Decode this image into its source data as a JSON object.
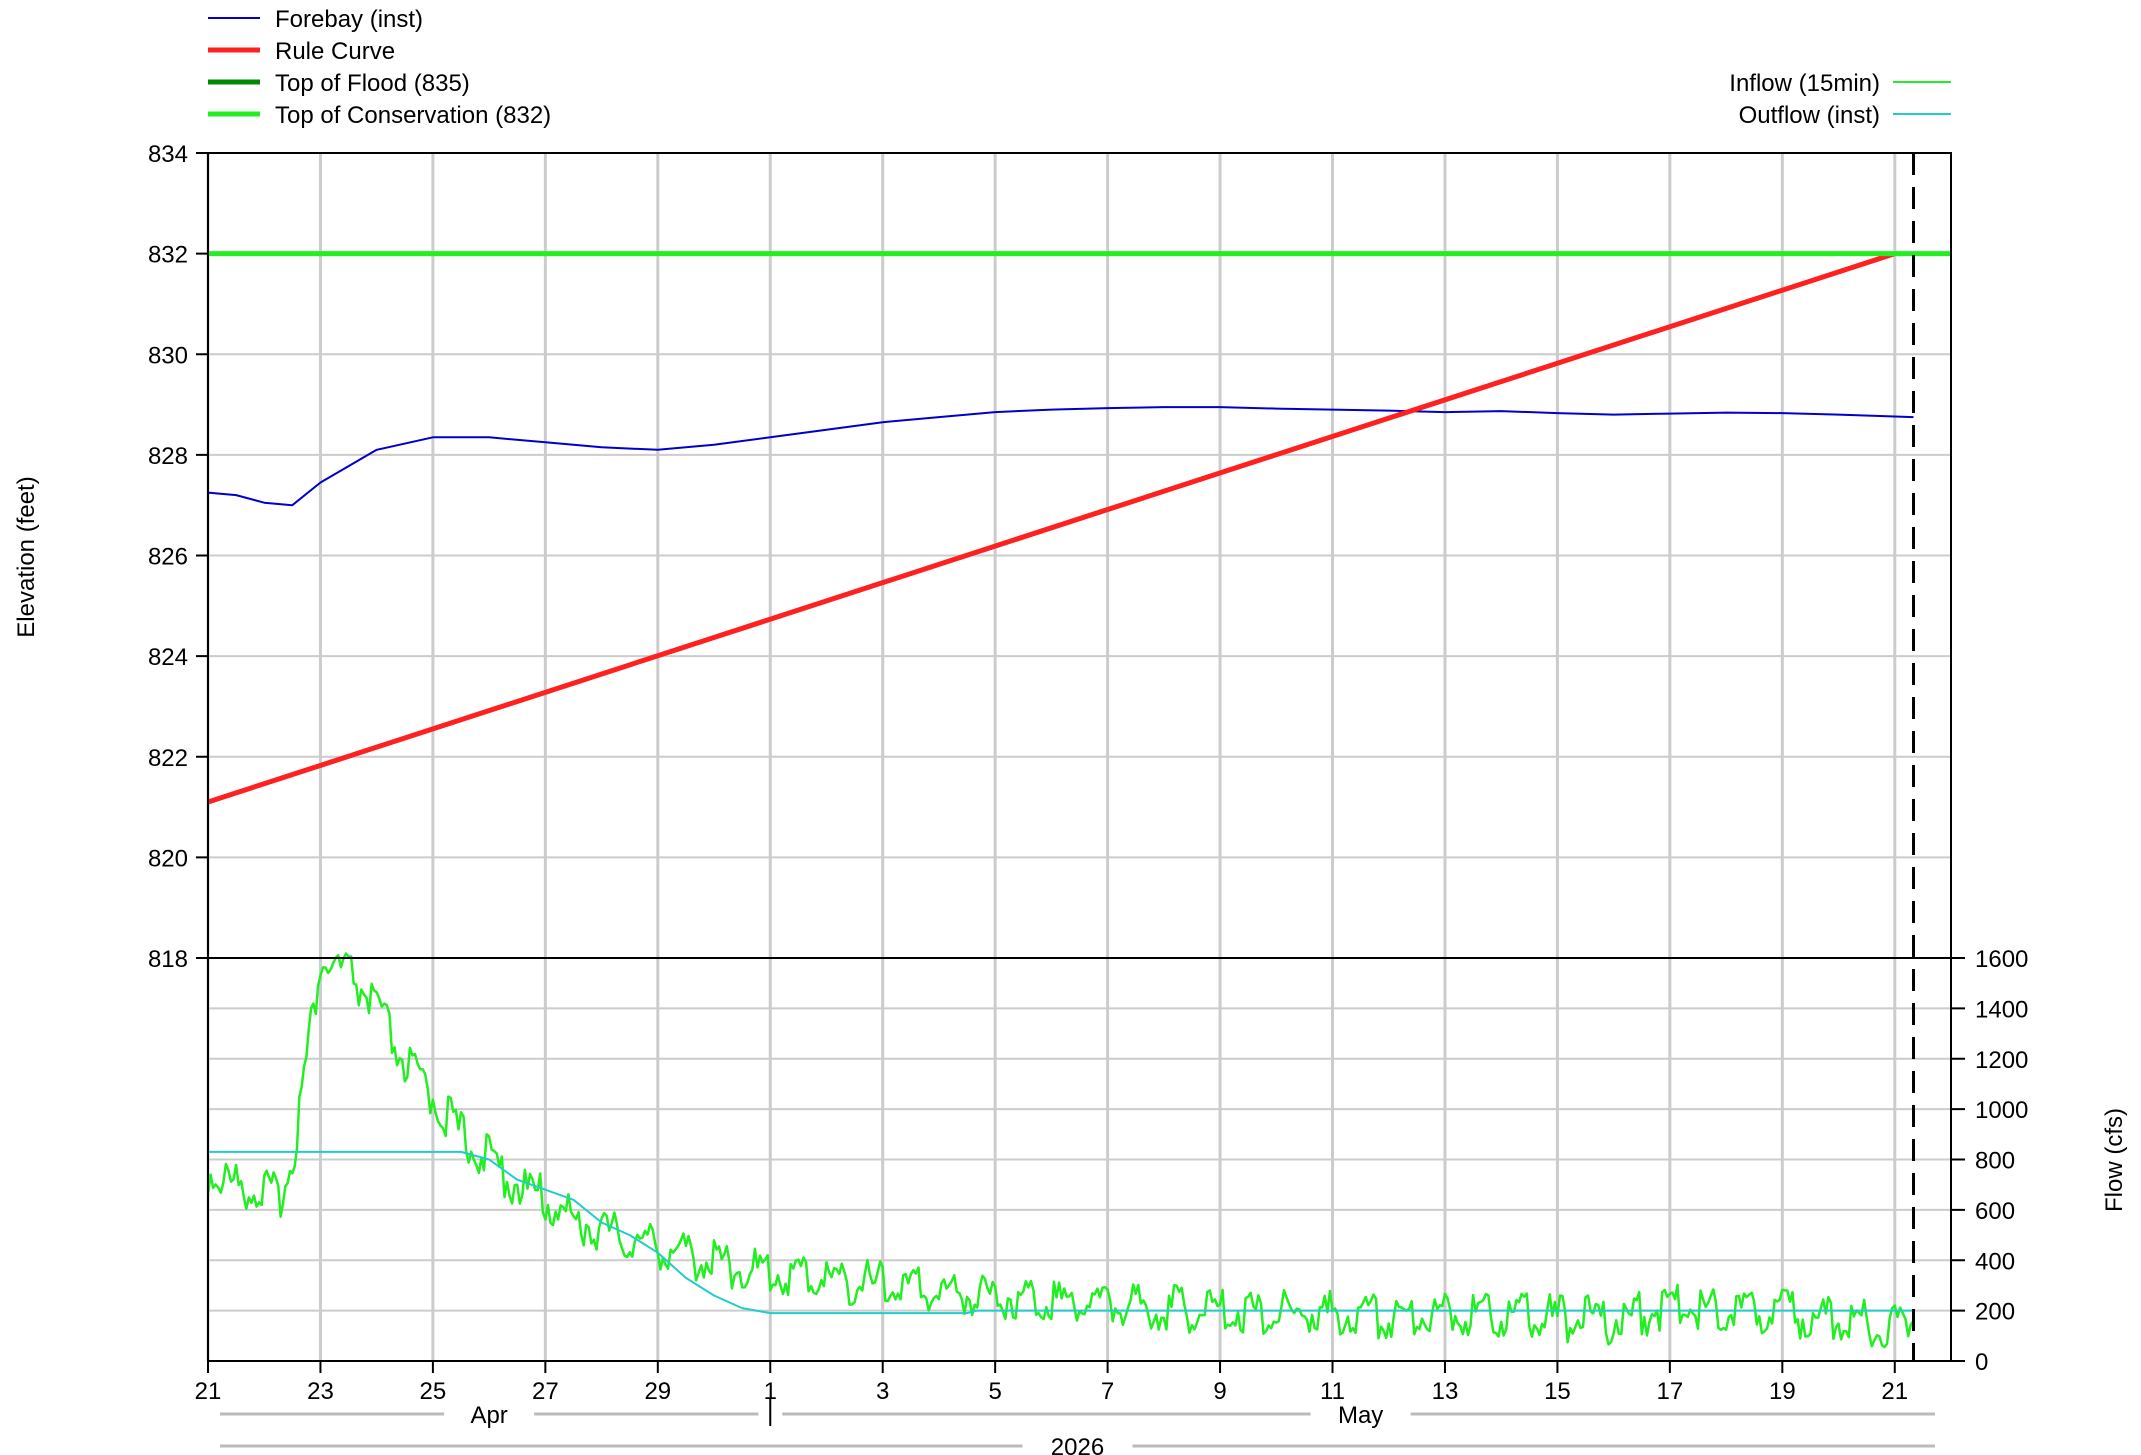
{
  "chart_data": {
    "type": "line",
    "title": "",
    "x_axis": {
      "range": [
        "2026-04-21",
        "2026-05-22"
      ],
      "tick_labels": [
        "21",
        "23",
        "25",
        "27",
        "29",
        "1",
        "3",
        "5",
        "7",
        "9",
        "11",
        "13",
        "15",
        "17",
        "19",
        "21"
      ],
      "tick_dates": [
        "2026-04-21",
        "2026-04-23",
        "2026-04-25",
        "2026-04-27",
        "2026-04-29",
        "2026-05-01",
        "2026-05-03",
        "2026-05-05",
        "2026-05-07",
        "2026-05-09",
        "2026-05-11",
        "2026-05-13",
        "2026-05-15",
        "2026-05-17",
        "2026-05-19",
        "2026-05-21"
      ],
      "month_labels": [
        "Apr",
        "May"
      ],
      "year_label": "2026",
      "current_time_marker": "2026-05-21T08:00"
    },
    "elevation_axis": {
      "label": "Elevation (feet)",
      "range": [
        818,
        834
      ],
      "ticks": [
        "834",
        "832",
        "830",
        "828",
        "826",
        "824",
        "822",
        "820",
        "818"
      ]
    },
    "flow_axis": {
      "label": "Flow (cfs)",
      "range": [
        0,
        1600
      ],
      "ticks": [
        "1600",
        "1400",
        "1200",
        "1000",
        "800",
        "600",
        "400",
        "200",
        "0"
      ]
    },
    "grid": true,
    "legend_left": [
      {
        "name": "Forebay (inst)",
        "color": "#0000cc"
      },
      {
        "name": "Rule Curve",
        "color": "#ff2020"
      },
      {
        "name": "Top of Flood (835)",
        "color": "#008800"
      },
      {
        "name": "Top of Conservation (832)",
        "color": "#22ee22"
      }
    ],
    "legend_right": [
      {
        "name": "Inflow (15min)",
        "color": "#22ee22"
      },
      {
        "name": "Outflow (inst)",
        "color": "#22cccc"
      }
    ],
    "series": [
      {
        "name": "Forebay (inst)",
        "axis": "elevation",
        "color": "#0000cc",
        "points": [
          [
            "2026-04-21",
            827.25
          ],
          [
            "2026-04-21T12:00",
            827.2
          ],
          [
            "2026-04-22",
            827.05
          ],
          [
            "2026-04-22T12:00",
            827.0
          ],
          [
            "2026-04-23",
            827.45
          ],
          [
            "2026-04-24",
            828.1
          ],
          [
            "2026-04-25",
            828.35
          ],
          [
            "2026-04-26",
            828.35
          ],
          [
            "2026-04-27",
            828.25
          ],
          [
            "2026-04-28",
            828.15
          ],
          [
            "2026-04-29",
            828.1
          ],
          [
            "2026-04-30",
            828.2
          ],
          [
            "2026-05-01",
            828.35
          ],
          [
            "2026-05-02",
            828.5
          ],
          [
            "2026-05-03",
            828.65
          ],
          [
            "2026-05-04",
            828.75
          ],
          [
            "2026-05-05",
            828.85
          ],
          [
            "2026-05-06",
            828.9
          ],
          [
            "2026-05-07",
            828.93
          ],
          [
            "2026-05-08",
            828.95
          ],
          [
            "2026-05-09",
            828.95
          ],
          [
            "2026-05-10",
            828.92
          ],
          [
            "2026-05-11",
            828.9
          ],
          [
            "2026-05-12",
            828.88
          ],
          [
            "2026-05-13",
            828.85
          ],
          [
            "2026-05-14",
            828.87
          ],
          [
            "2026-05-15",
            828.83
          ],
          [
            "2026-05-16",
            828.8
          ],
          [
            "2026-05-17",
            828.82
          ],
          [
            "2026-05-18",
            828.84
          ],
          [
            "2026-05-19",
            828.83
          ],
          [
            "2026-05-20",
            828.8
          ],
          [
            "2026-05-21T08:00",
            828.75
          ]
        ]
      },
      {
        "name": "Rule Curve",
        "axis": "elevation",
        "color": "#ff2020",
        "points": [
          [
            "2026-04-21",
            821.1
          ],
          [
            "2026-05-21",
            832.0
          ]
        ]
      },
      {
        "name": "Top of Flood (835)",
        "axis": "elevation",
        "color": "#008800",
        "points": [
          [
            "2026-04-21",
            835
          ],
          [
            "2026-05-22",
            835
          ]
        ]
      },
      {
        "name": "Top of Conservation (832)",
        "axis": "elevation",
        "color": "#22ee22",
        "points": [
          [
            "2026-04-21",
            832
          ],
          [
            "2026-05-22",
            832
          ]
        ]
      },
      {
        "name": "Inflow (15min)",
        "axis": "flow",
        "color": "#22ee22",
        "points": [
          [
            "2026-04-21",
            750
          ],
          [
            "2026-04-21T12:00",
            700
          ],
          [
            "2026-04-22",
            680
          ],
          [
            "2026-04-22T06:00",
            640
          ],
          [
            "2026-04-22T12:00",
            800
          ],
          [
            "2026-04-22T18:00",
            1200
          ],
          [
            "2026-04-23",
            1580
          ],
          [
            "2026-04-23T12:00",
            1540
          ],
          [
            "2026-04-24",
            1400
          ],
          [
            "2026-04-24T12:00",
            1180
          ],
          [
            "2026-04-25",
            1050
          ],
          [
            "2026-04-25T12:00",
            900
          ],
          [
            "2026-04-26",
            800
          ],
          [
            "2026-04-26T12:00",
            700
          ],
          [
            "2026-04-27",
            640
          ],
          [
            "2026-04-27T12:00",
            560
          ],
          [
            "2026-04-28",
            520
          ],
          [
            "2026-04-28T12:00",
            480
          ],
          [
            "2026-04-29",
            460
          ],
          [
            "2026-04-29T12:00",
            420
          ],
          [
            "2026-04-30",
            400
          ],
          [
            "2026-04-30T12:00",
            370
          ],
          [
            "2026-05-01",
            350
          ],
          [
            "2026-05-02",
            330
          ],
          [
            "2026-05-03",
            300
          ],
          [
            "2026-05-04",
            280
          ],
          [
            "2026-05-05",
            260
          ],
          [
            "2026-05-06",
            250
          ],
          [
            "2026-05-07",
            230
          ],
          [
            "2026-05-08",
            210
          ],
          [
            "2026-05-09",
            200
          ],
          [
            "2026-05-10",
            190
          ],
          [
            "2026-05-11",
            185
          ],
          [
            "2026-05-12",
            180
          ],
          [
            "2026-05-13",
            200
          ],
          [
            "2026-05-14",
            190
          ],
          [
            "2026-05-15",
            170
          ],
          [
            "2026-05-16",
            160
          ],
          [
            "2026-05-17",
            220
          ],
          [
            "2026-05-18",
            210
          ],
          [
            "2026-05-19",
            190
          ],
          [
            "2026-05-20",
            160
          ],
          [
            "2026-05-21",
            140
          ],
          [
            "2026-05-21T08:00",
            160
          ]
        ]
      },
      {
        "name": "Outflow (inst)",
        "axis": "flow",
        "color": "#22cccc",
        "points": [
          [
            "2026-04-21",
            830
          ],
          [
            "2026-04-25T12:00",
            830
          ],
          [
            "2026-04-26",
            800
          ],
          [
            "2026-04-26T12:00",
            720
          ],
          [
            "2026-04-27",
            680
          ],
          [
            "2026-04-27T12:00",
            640
          ],
          [
            "2026-04-28",
            550
          ],
          [
            "2026-04-28T12:00",
            500
          ],
          [
            "2026-04-29",
            430
          ],
          [
            "2026-04-29T12:00",
            330
          ],
          [
            "2026-04-30",
            260
          ],
          [
            "2026-04-30T12:00",
            210
          ],
          [
            "2026-05-01",
            190
          ],
          [
            "2026-05-04T12:00",
            190
          ],
          [
            "2026-05-04T16:00",
            200
          ],
          [
            "2026-05-21T08:00",
            200
          ]
        ]
      }
    ]
  }
}
